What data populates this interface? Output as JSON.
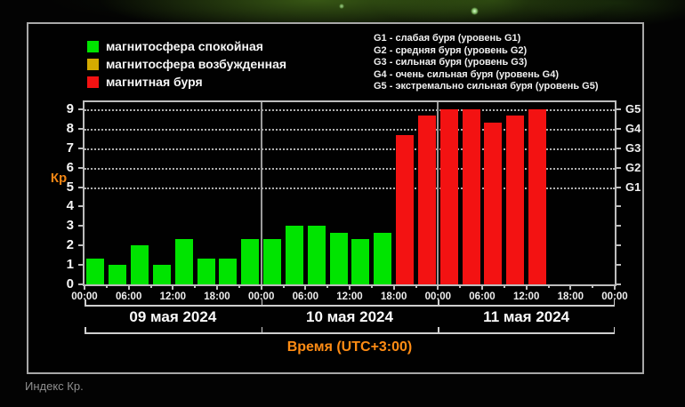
{
  "page": {
    "caption": "Индекс Кр."
  },
  "legend": {
    "items": [
      {
        "key": "quiet",
        "label": "магнитосфера спокойная",
        "color": "#00e400"
      },
      {
        "key": "excited",
        "label": "магнитосфера возбужденная",
        "color": "#d4aa00"
      },
      {
        "key": "storm",
        "label": "магнитная буря",
        "color": "#f31212"
      }
    ]
  },
  "storm_scale": [
    "G1 - слабая буря (уровень G1)",
    "G2 - средняя буря (уровень G2)",
    "G3 - сильная буря (уровень G3)",
    "G4 - очень сильная буря (уровень G4)",
    "G5 - экстремально сильная буря (уровень G5)"
  ],
  "chart_data": {
    "type": "bar",
    "ylabel": "Кр",
    "xlabel": "Время (UTC+3:00)",
    "ylim": [
      0,
      9.4
    ],
    "y_ticks": [
      0,
      1,
      2,
      3,
      4,
      5,
      6,
      7,
      8,
      9
    ],
    "g_levels": [
      {
        "label": "G1",
        "kp": 5
      },
      {
        "label": "G2",
        "kp": 6
      },
      {
        "label": "G3",
        "kp": 7
      },
      {
        "label": "G4",
        "kp": 8
      },
      {
        "label": "G5",
        "kp": 9
      }
    ],
    "grid": "horizontal dotted lines at G levels (Kp 5-9)",
    "legend_position": "top",
    "slots_per_day": 8,
    "slot_hours": 3,
    "time_tick_labels": [
      "00:00",
      "06:00",
      "12:00",
      "18:00",
      "00:00",
      "06:00",
      "12:00",
      "18:00",
      "00:00",
      "06:00",
      "12:00",
      "18:00",
      "00:00"
    ],
    "thresholds": {
      "excited_from": 4,
      "storm_from": 5
    },
    "days": [
      {
        "date": "09 мая 2024",
        "values": [
          1.33,
          1.0,
          2.0,
          1.0,
          2.33,
          1.33,
          1.33,
          2.33
        ]
      },
      {
        "date": "10 мая 2024",
        "values": [
          2.33,
          3.0,
          3.0,
          2.67,
          2.33,
          2.67,
          7.67,
          8.67
        ]
      },
      {
        "date": "11 мая 2024",
        "values": [
          9.0,
          9.0,
          8.33,
          8.67,
          9.0
        ]
      }
    ]
  }
}
